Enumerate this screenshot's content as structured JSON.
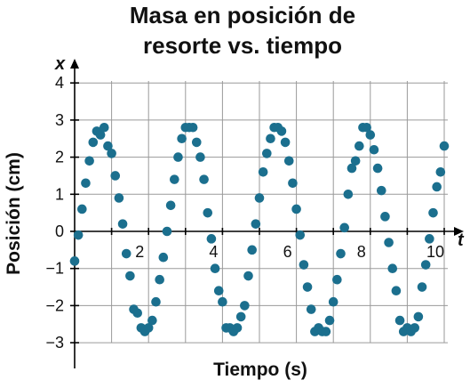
{
  "chart_data": {
    "type": "scatter",
    "title_lines": [
      "Masa en posición de",
      "resorte vs. tiempo"
    ],
    "xlabel": "Tiempo (s)",
    "ylabel": "Posición (cm)",
    "x_axis_var": "t",
    "y_axis_var": "x",
    "xlim": [
      -0.2,
      10.2
    ],
    "ylim": [
      -3.7,
      4.2
    ],
    "grid": true,
    "x_grid": [
      1,
      2,
      3,
      4,
      5,
      6,
      7,
      8,
      9,
      10
    ],
    "y_grid": [
      -3,
      -2,
      -1,
      1,
      2,
      3,
      4
    ],
    "x_tick_labels": [
      {
        "v": 2,
        "t": "2"
      },
      {
        "v": 4,
        "t": "4"
      },
      {
        "v": 6,
        "t": "6"
      },
      {
        "v": 8,
        "t": "8"
      },
      {
        "v": 10,
        "t": "10"
      }
    ],
    "y_tick_labels": [
      {
        "v": 4,
        "t": "4"
      },
      {
        "v": 3,
        "t": "3"
      },
      {
        "v": 2,
        "t": "2"
      },
      {
        "v": 1,
        "t": "1"
      },
      {
        "v": 0,
        "t": "0"
      },
      {
        "v": -1,
        "t": "−1"
      },
      {
        "v": -2,
        "t": "−2"
      },
      {
        "v": -3,
        "t": "−3"
      }
    ],
    "color": "#1b6f8e",
    "points": [
      [
        0.0,
        -0.8
      ],
      [
        0.1,
        -0.1
      ],
      [
        0.2,
        0.6
      ],
      [
        0.3,
        1.3
      ],
      [
        0.4,
        1.9
      ],
      [
        0.5,
        2.4
      ],
      [
        0.6,
        2.7
      ],
      [
        0.7,
        2.6
      ],
      [
        0.8,
        2.8
      ],
      [
        0.9,
        2.3
      ],
      [
        1.0,
        2.1
      ],
      [
        1.1,
        1.5
      ],
      [
        1.2,
        0.9
      ],
      [
        1.3,
        0.2
      ],
      [
        1.4,
        -0.6
      ],
      [
        1.5,
        -1.2
      ],
      [
        1.6,
        -2.1
      ],
      [
        1.7,
        -2.2
      ],
      [
        1.8,
        -2.6
      ],
      [
        1.9,
        -2.7
      ],
      [
        2.0,
        -2.6
      ],
      [
        2.1,
        -2.4
      ],
      [
        2.2,
        -1.9
      ],
      [
        2.3,
        -1.3
      ],
      [
        2.4,
        -0.7
      ],
      [
        2.5,
        0.0
      ],
      [
        2.6,
        0.7
      ],
      [
        2.7,
        1.4
      ],
      [
        2.8,
        2.0
      ],
      [
        2.9,
        2.5
      ],
      [
        3.0,
        2.8
      ],
      [
        3.1,
        2.8
      ],
      [
        3.2,
        2.8
      ],
      [
        3.3,
        2.4
      ],
      [
        3.4,
        2.0
      ],
      [
        3.5,
        1.4
      ],
      [
        3.6,
        0.5
      ],
      [
        3.7,
        -0.2
      ],
      [
        3.8,
        -1.0
      ],
      [
        3.9,
        -1.6
      ],
      [
        4.0,
        -1.9
      ],
      [
        4.1,
        -2.6
      ],
      [
        4.2,
        -2.6
      ],
      [
        4.3,
        -2.7
      ],
      [
        4.4,
        -2.6
      ],
      [
        4.5,
        -2.3
      ],
      [
        4.6,
        -2.0
      ],
      [
        4.7,
        -1.2
      ],
      [
        4.8,
        -0.5
      ],
      [
        4.9,
        0.2
      ],
      [
        5.0,
        0.9
      ],
      [
        5.1,
        1.6
      ],
      [
        5.2,
        2.1
      ],
      [
        5.3,
        2.5
      ],
      [
        5.4,
        2.8
      ],
      [
        5.5,
        2.8
      ],
      [
        5.6,
        2.7
      ],
      [
        5.7,
        2.4
      ],
      [
        5.8,
        1.9
      ],
      [
        5.9,
        1.3
      ],
      [
        6.0,
        0.6
      ],
      [
        6.1,
        -0.1
      ],
      [
        6.2,
        -0.9
      ],
      [
        6.3,
        -1.5
      ],
      [
        6.4,
        -2.1
      ],
      [
        6.5,
        -2.7
      ],
      [
        6.6,
        -2.6
      ],
      [
        6.7,
        -2.7
      ],
      [
        6.8,
        -2.7
      ],
      [
        6.9,
        -2.4
      ],
      [
        7.0,
        -1.9
      ],
      [
        7.1,
        -1.3
      ],
      [
        7.2,
        -0.6
      ],
      [
        7.3,
        0.1
      ],
      [
        7.4,
        1.0
      ],
      [
        7.5,
        1.7
      ],
      [
        7.6,
        1.9
      ],
      [
        7.7,
        2.3
      ],
      [
        7.8,
        2.8
      ],
      [
        7.9,
        2.8
      ],
      [
        8.0,
        2.6
      ],
      [
        8.1,
        2.2
      ],
      [
        8.2,
        1.7
      ],
      [
        8.3,
        1.1
      ],
      [
        8.4,
        0.4
      ],
      [
        8.5,
        -0.3
      ],
      [
        8.6,
        -1.0
      ],
      [
        8.7,
        -1.6
      ],
      [
        8.8,
        -2.4
      ],
      [
        8.9,
        -2.7
      ],
      [
        9.0,
        -2.6
      ],
      [
        9.1,
        -2.7
      ],
      [
        9.2,
        -2.6
      ],
      [
        9.3,
        -2.3
      ],
      [
        9.4,
        -1.5
      ],
      [
        9.5,
        -0.9
      ],
      [
        9.6,
        -0.2
      ],
      [
        9.7,
        0.5
      ],
      [
        9.8,
        1.2
      ],
      [
        9.9,
        1.6
      ],
      [
        10.0,
        2.3
      ]
    ]
  }
}
